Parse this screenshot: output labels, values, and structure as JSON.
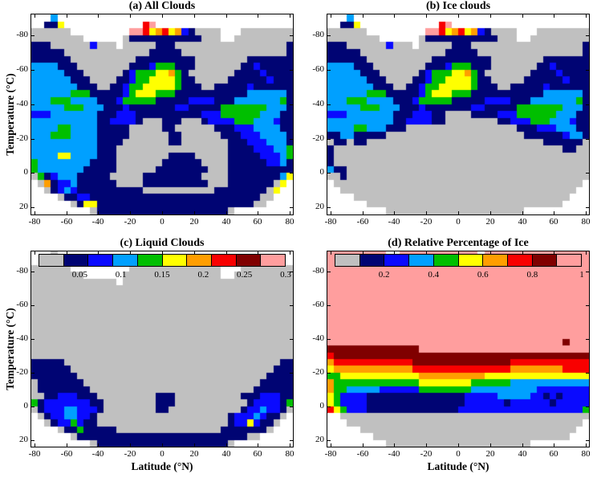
{
  "palette": {
    ".": "#ffffff",
    "G": "#c0c0c0",
    "N": "#000473",
    "B": "#0a0aff",
    "C": "#00a0ff",
    "g": "#00bf00",
    "Y": "#ffff00",
    "O": "#ff9e00",
    "R": "#f80000",
    "D": "#800000",
    "P": "#ff9e9e"
  },
  "palette_names": {
    "G": "gray-no-cloud",
    "N": "navy",
    "B": "blue",
    "C": "cyan",
    "g": "green",
    "Y": "yellow",
    "O": "orange",
    "R": "red",
    "D": "dark-red",
    "P": "pink",
    ".": "no-data-white"
  },
  "axes": {
    "x_range": [
      -82,
      82
    ],
    "y_range": [
      -92,
      24
    ],
    "xticks": [
      -80,
      -60,
      -40,
      -20,
      0,
      20,
      40,
      60,
      80
    ],
    "yticks": [
      -80,
      -60,
      -40,
      -20,
      0,
      20
    ],
    "lat_cell_deg": 4,
    "temp_cell_deg": 4,
    "grid_cols": 40,
    "grid_rows": 29
  },
  "chart_data": [
    {
      "id": "a",
      "type": "heatmap",
      "title": "(a) All Clouds",
      "ylabel": "Temperature (°C)",
      "grid": [
        "...C....................................",
        "..NNY............RP.....................",
        "GGGGGG.........PPRYORYOBNGGGG...GGGGGGGG",
        "GGGGGGGG......GNNNNNNNNNNNGGG..GGGGGGGGG",
        "NNNGGGGGGBGGG.GGGGGNNNGGGGGGGGGGGGGGGGGN",
        "NNNNNGGGGGGGGGGGGGNNNNNGGGGGGGGGGGGGGGGN",
        "NNNNNNGGGGGGGGGGNNNNNNNNNGGGGGGGGNNNNNNN",
        "CCCCNNNGGGGGGGGNNNBgggNNNGGGGGGGNNBNNNNN",
        "CCCCCNNNGGGGGGNBgggYYOgNGGGGGGGNNNNBNNNN",
        "CCCCCCNNNGGGGNNBggYYYYgNNGGGGGNNNNNNBNNN",
        "CCCCCCCNNNGGNNBggYYYYYgNNNGGNNNNNBNNNNNN",
        "CCCCCCgggNNNNNBgYYYgggNNNNNNNNNNNCCCCCCN",
        "CCCgggCCCCNNNBgggggNNNNNBBBBNNNCCCCCCCgN",
        "CCCCCgggCCCNNNBNNNNNNNBBNNNNNgggggggCCCN",
        "BBBCCCCCCCNNNBBBNNNNNNNNNNBBBggggggCCCNN",
        "CCCCCCCCCCNNBBBBNGGGNNNGGGNBBBBgggCCCBNN",
        "CCCCggCCCCNNNNNGGGGGNNGGGGGGNNNBBBCCCCNN",
        "CCCgggCCCCNNNNNGGGGGGNNGGGGGGNNNBBBCCCCN",
        "CCCCCCCCCCNNNNGGGGGGGNNGGGGGGGNNNBBBCCCN",
        "CCCCCCCCCCNNNGGGGGGGGGGGGGGGGGNNNNBBBCCg",
        "CCCCYYCCCCNNNGGGGGGGGNNNNGGGGGNNNNNBBBCg",
        "gCCCCCCCCNNNNGGGGGGGNNNNNNGGGGNNNNNNBBCN",
        "gCCCCCCCNNNNNGGGGGGNNNNNNNNGGGNNNNNNNNNN",
        "GgNBCCCNNNNNGGGGGNNNNNNNNNGGGGNNNNNNNNCY",
        ".GONBBCNNNNNNGGGGNNNNNNNNNNGGGNNNNNNNGY.",
        "..GNBCBNNNNNNNNNNGGGGGGGGGGGNNNNNNNNGY..",
        "....GNNBBNNNNNNNNNNNNNNNNNNNNNNNNNNGG...",
        "......GNYYNNNNNNNNNNNNNNNNNNNNNNNNGG....",
        ".........GNNNNNNNNNNNNNNNNNNNNG........."
      ]
    },
    {
      "id": "b",
      "type": "heatmap",
      "title": "(b) Ice clouds",
      "grid": [
        "...C....................................",
        "..NNY............RP.....................",
        "GGGGGG.........PPRYORYOBNGGGG...GGGGGGGG",
        "GGGGGGGG......GNNNNNNNNNNNGGG..GGGGGGGGG",
        "NNNGGGGGGBGGG.GGGGGNNNGGGGGGGGGGGGGGGGGN",
        "NNNNNGGGGGGGGGGGGGNNNNNGGGGGGGGGGGGGGGGN",
        "NNNNNNGGGGGGGGGGNNNNNNNNNGGGGGGGGNNNNNNN",
        "CCCCNNNGGGGGGGGNNNBgggNNNGGGGGGGNNBNNNNN",
        "CCCCCNNNGGGGGGNBgggYYOgNGGGGGGGNNNNBNNNN",
        "CCCCCCNNNGGGGNNBggYYYYgNNGGGGGNNNNNNBNNN",
        "CCCCCCCNNNGGNNBggYYYYYgNNNGGNNNNNBNNNNNN",
        "CCCCCCgggNNNNNBgYYYgggNNNNNNNNNNNCCCCCCN",
        "CCCgggCCCCNNNBgggggNNNNNBBBBNNNCCCCCCCgN",
        "CCCCCgggCCCNNNBNNNNNNNBBNNNNNgggggggCCCN",
        "BBBCCCCCCCNNNBBBNNGGGGNNNNBBBggggggCCCNN",
        "CCCCCCCCCCNNBBBBNNGGGGGGGGNNBBBgggCCCBNN",
        "CCCCggCCCNNNGGGGGGGGGGGGGGGGGNNNBBBCCCNN",
        "NNCCNNNNNGGGGGGGGGGGGGGGGGGGGGNNNNNNBCCN",
        "GNNGNNGGGGGGGGGGGGGGGGGGGGGGGGGGGNNNNNNG",
        "NGGGGGGGGGGGGGGGGGGGGGGGGGGGGGGGGGGGNNGG",
        "NGGGGGGGGGGGGGGGGGGGGGGGGGGGGGGGGGGGGGGG",
        "NGGGGGGGGGGGGGGGGGGGGGGGGGGGGGGGGGGGGGGG",
        "CNNGGGGGGGGGGGGGGGGGGGGGGGGGGGGGGGGGGGGG",
        "GGNGGGGGGGGGGGGGGGGGGGGGGGGGGGGGGGGGGGGG",
        ".GGGGGGGGGGGGGGGGGGGGGGGGGGGGGGGGGGGGGG.",
        "..GGGGGGGGGGGGGGGGGGGGGGGGGGGGGGGGGGGG..",
        "....GGGGGGGGGGGGGGGGGGGGGGGGGGGGGGGGG...",
        "......GGGGGGGGGGGGGGGGGGGGGGGGGGGGGG....",
        ".........GGGGGGGGGGGGGGGGGGGGG.........."
      ]
    },
    {
      "id": "c",
      "type": "heatmap",
      "title": "(c) Liquid Clouds",
      "xlabel": "Latitude (°N)",
      "ylabel": "Temperature (°C)",
      "colorbar": {
        "segments": [
          "G",
          "N",
          "B",
          "C",
          "g",
          "Y",
          "O",
          "R",
          "D",
          "P"
        ],
        "tick_labels": [
          "0.05",
          "0.1",
          "0.15",
          "0.2",
          "0.25",
          "0.3"
        ],
        "value_range": [
          0,
          0.3
        ]
      },
      "grid": [
        "...G....................................",
        "..GGG............GG.....................",
        "GGGGGG.........GGGGGGGGGGGGGG...GGGGGGGG",
        "GGGGGGGG......GGGGGGGGGGGGGGG..GGGGGGGGG",
        "GGGGGGGGGGGGG.GGGGGGGGGGGGGGGGGGGGGGGGGG",
        "GGGGGGGGGGGGGGGGGGGGGGGGGGGGGGGGGGGGGGGG",
        "GGGGGGGGGGGGGGGGGGGGGGGGGGGGGGGGGGGGGGGG",
        "GGGGGGGGGGGGGGGGGGGGGGGGGGGGGGGGGGGGGGGG",
        "GGGGGGGGGGGGGGGGGGGGGGGGGGGGGGGGGGGGGGGG",
        "GGGGGGGGGGGGGGGGGGGGGGGGGGGGGGGGGGGGGGGG",
        "GGGGGGGGGGGGGGGGGGGGGGGGGGGGGGGGGGGGGGGG",
        "GGGGGGGGGGGGGGGGGGGGGGGGGGGGGGGGGGGGGGGG",
        "GGGGGGGGGGGGGGGGGGGGGGGGGGGGGGGGGGGGGGGG",
        "GGGGGGGGGGGGGGGGGGGGGGGGGGGGGGGGGGGGGGGG",
        "GGGGGGGGGGGGGGGGGGGGGGGGGGGGGGGGGGGGGGGG",
        "GGGGGGGGGGGGGGGGGGGGGGGGGGGGGGGGGGGGGGGG",
        "NNNNNGGGGGGGGGGGGGGGGGGGGGGGGGGGGGGGGGNN",
        "NNNNNNGGGGGGGGGGGGGGGGGGGGGGGGGGGGGGGNNN",
        "NNNNNNNGGGGGGGGGGGGGGGGGGGGGGGGGGGGGNNNN",
        "GNNNNNNNGGGGGGGGGGGGGGGGGGGGGGGGGGGNNNNN",
        "GNNNNNNNNGGGGGGGGGGGGGGGGGGGGGGGGGNNNNNN",
        "GGNNBBBNNNGGGGGGGGGNNNGGGGGGGGGGNNNBBBNN",
        "gNBBBBBBBNNGGGGGGGGNNNGGGGGGGGGGGNBBBBNg",
        "GNBBBCCBBBNGGGGGGGGNNGGGGGGGGGGGNBBCBBNG",
        ".GNBBCCBBNGGGGGGGGGGGGGGGGGGGGNBBBCBNNG.",
        "..GNBBgBNNGGGGGGGGGGGGGGGGGGGGNBBYBNNG..",
        "....GNNgNNNNNGGGGGGGGGGGGGGGGNNNNNNNG...",
        "......GNNNNNNNNNNNNNNNNNNNNNNNNNNGG.....",
        ".........GNNNNNNNNNNNNNNNNNNNNG........."
      ]
    },
    {
      "id": "d",
      "type": "heatmap",
      "title": "(d) Relative Percentage of Ice",
      "xlabel": "Latitude (°N)",
      "colorbar": {
        "segments": [
          "G",
          "N",
          "B",
          "C",
          "g",
          "Y",
          "O",
          "R",
          "D",
          "P"
        ],
        "tick_labels": [
          "0.2",
          "0.4",
          "0.6",
          "0.8",
          "1"
        ],
        "value_range": [
          0,
          1
        ]
      },
      "grid": [
        "PPPPPPPPP..PPPPPPPPPPPP.PPPPPPPPPPPPPPPP",
        "PPPPPPPPPPPPPPPPPPPPPPPPPPPPPPPPPPPPPPPP",
        "PPPPPPPPPPPPPPPPPPPPPPPPPPPPPPPPPPPPPPPP",
        "PPPPPPPPPPPPPPPPPPPPPPPPPPPPPPPPPPPPPPPP",
        "PPPPPPPPPPPPPPPPPPPPPPPPPPPPPPPPPPPPPPPP",
        "PPPPPPPPPPPPPPPPPPPPPPPPPPPPPPPPPPPPPPPP",
        "PPPPPPPPPPPPPPPPPPPPPPPPPPPPPPPPPPPPPPPP",
        "PPPPPPPPPPPPPPPPPPPPPPPPPPPPPPPPPPPPPPPP",
        "PPPPPPPPPPPPPPPPPPPPPPPPPPPPPPPPPPPPPPPP",
        "PPPPPPPPPPPPPPPPPPPPPPPPPPPPPPPPPPPPPPPP",
        "PPPPPPPPPPPPPPPPPPPPPPPPPPPPPPPPPPPPPPPP",
        "PPPPPPPPPPPPPPPPPPPPPPPPPPPPPPPPPPPPPPPP",
        "PPPPPPPPPPPPPPPPPPPPPPPPPPPPPPPPPPPPPPPP",
        "PPPPPPPPPPPPPPPPPPPPPPPPPPPPPPPPPPPPDPPP",
        "DDDDDDDDDDDDDDPPPPPPPPPPPPPPPPPPPPPPPPPP",
        "RDDDDDDDDDDDDDDDDDDDDDDDDDDDDDDDDDDDDDDD",
        "ORRRRRRRRRRRRDDDDDDDDDDDDDDDRRRRRRRRRRRR",
        "YOOOOOOOOOOOORRRRRRRRRRRRRRROOOOOOOORRRR",
        "ggYYYYYYYYYYYYOOOOOOOOOOYYYYYYYYYYYYYYYY",
        "OgggggggggggggYYYYYYYYggggggCCCCCCCCCCCC",
        "OggCCCCCBBBBBBggggggggCCCCCCCCCCBBBBBBBB",
        "YgBBBBNNNNNNNNNNNNNNNBBBBBCCCCCBBNBNBBBB",
        "YgBBBBNNNNNNNNNNNNNNNBBBBBBNBBBBBBNBBBBB",
        "RYgBBBNNNNNNNNNNNNNNBBBBBBBBBBBBBBBBBBBg",
        "..GGGGGGGGGGGGGGGGGGGGGGGGGGGGGGGGGGGGGG",
        "...GGGGGGGGGGGGGGGGGGGGGGGGGGGGGGGGGGGG.",
        ".....GGGGGGGGGGGGGGGGGGGGGGGGGGGGGGGGG..",
        ".......GGGGGGGGGGGGGGGGGGGGGGGGGGGGGG...",
        ".........GGGGGGGGGGGGGGGGGGGGGG........."
      ]
    }
  ]
}
